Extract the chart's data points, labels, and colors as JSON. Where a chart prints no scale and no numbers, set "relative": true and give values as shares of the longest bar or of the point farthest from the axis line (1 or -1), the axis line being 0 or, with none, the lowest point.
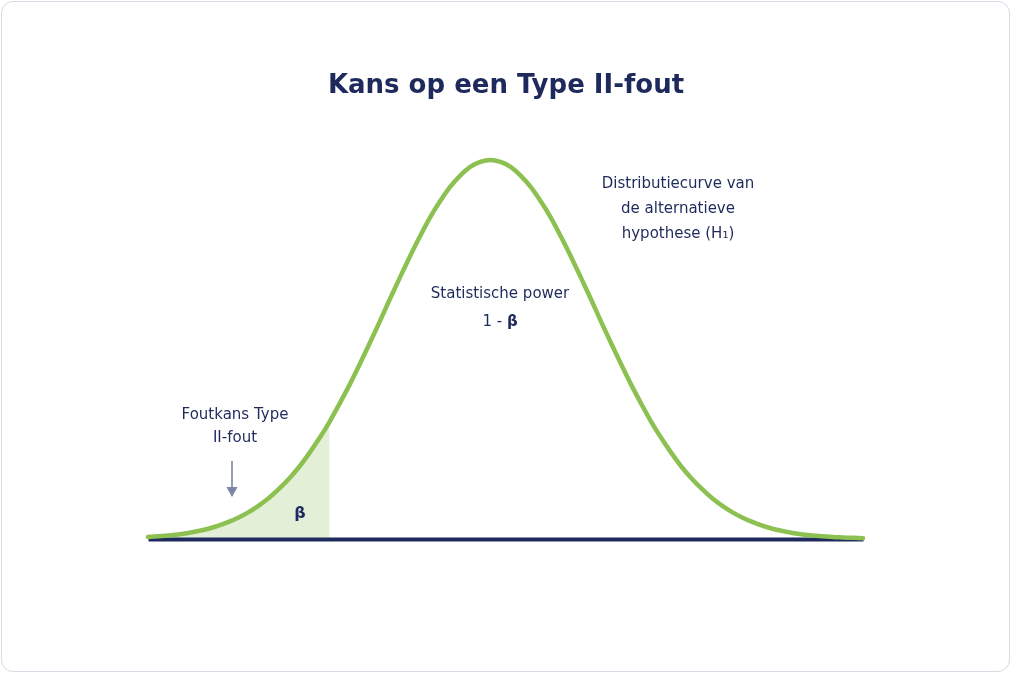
{
  "chart_data": {
    "type": "line",
    "title": "Kans op een Type II-fout",
    "relative": true,
    "categories": [
      null,
      null,
      null,
      null,
      null,
      null,
      null,
      null,
      null,
      null,
      null,
      null,
      null,
      null,
      null,
      null,
      null,
      null,
      null,
      null,
      null,
      null,
      null,
      null,
      null,
      null,
      null,
      null,
      null,
      null,
      null,
      null,
      null,
      null,
      null,
      null,
      null,
      null,
      null,
      null,
      null,
      null,
      null,
      null,
      null,
      null,
      null,
      null,
      null,
      null,
      null,
      null,
      null,
      null,
      null,
      null,
      null,
      null,
      null,
      null,
      null,
      null,
      null,
      null,
      null,
      null,
      null,
      null,
      null,
      null,
      null,
      null
    ],
    "series": [
      {
        "type": "area",
        "color": "#e3efd7",
        "values": [
          0.005,
          0.007,
          0.009,
          0.012,
          0.016,
          0.021,
          0.027,
          0.035,
          0.045,
          0.057,
          0.071,
          0.088,
          0.108,
          0.132,
          0.159,
          0.19,
          0.226,
          0.265,
          0.308,
          null,
          null,
          null,
          null,
          null,
          null,
          null,
          null,
          null,
          null,
          null,
          null,
          null,
          null,
          null,
          null,
          null,
          null,
          null,
          null,
          null,
          null,
          null,
          null,
          null,
          null,
          null,
          null,
          null,
          null,
          null,
          null,
          null,
          null,
          null,
          null,
          null,
          null,
          null,
          null,
          null,
          null,
          null,
          null,
          null,
          null,
          null,
          null,
          null,
          null,
          null,
          null,
          null
        ]
      },
      {
        "color": "#8cc152",
        "values": [
          0.005,
          0.007,
          0.009,
          0.012,
          0.016,
          0.021,
          0.027,
          0.035,
          0.045,
          0.057,
          0.071,
          0.088,
          0.108,
          0.132,
          0.159,
          0.19,
          0.226,
          0.265,
          0.308,
          0.356,
          0.406,
          0.46,
          0.516,
          0.573,
          0.632,
          0.689,
          0.745,
          0.798,
          0.848,
          0.891,
          0.929,
          0.959,
          0.982,
          0.995,
          1,
          0.995,
          0.982,
          0.959,
          0.929,
          0.891,
          0.848,
          0.798,
          0.745,
          0.689,
          0.632,
          0.573,
          0.516,
          0.46,
          0.406,
          0.356,
          0.308,
          0.265,
          0.226,
          0.19,
          0.159,
          0.132,
          0.108,
          0.088,
          0.071,
          0.057,
          0.045,
          0.035,
          0.027,
          0.021,
          0.016,
          0.012,
          0.009,
          0.007,
          0.005,
          0.004,
          0.003,
          0.002
        ]
      }
    ],
    "annotations": [
      "Distributiecurve van de alternatieve hypothese (H₁)",
      "Statistische power 1 - β",
      "Foutkans Type II-fout",
      "β"
    ]
  }
}
